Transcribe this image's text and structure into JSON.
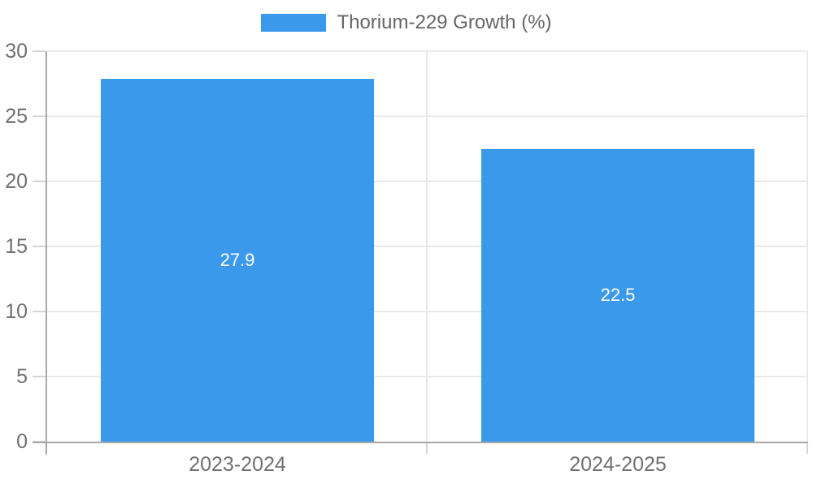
{
  "chart_data": {
    "type": "bar",
    "title": "Thorium-229 Growth (%)",
    "series_name": "Thorium-229 Growth (%)",
    "categories": [
      "2023-2024",
      "2024-2025"
    ],
    "values": [
      27.9,
      22.5
    ],
    "value_labels": [
      "27.9",
      "22.5"
    ],
    "xlabel": "",
    "ylabel": "",
    "ylim": [
      0,
      30
    ],
    "yticks": [
      0,
      5,
      10,
      15,
      20,
      25,
      30
    ],
    "ytick_step": 5,
    "grid": "on",
    "legend_position": "top",
    "value_label_position": "inside-center",
    "bar_band_fraction": 0.72
  },
  "colors": {
    "bar": "#3B99EC",
    "grid": "#E9E9E9",
    "axis": "#A8A8A8",
    "tick": "#D4D4D4",
    "tick_text": "#707070",
    "legend_text": "#666666",
    "value_text": "#FFFFFF",
    "background": "#FFFFFF"
  }
}
